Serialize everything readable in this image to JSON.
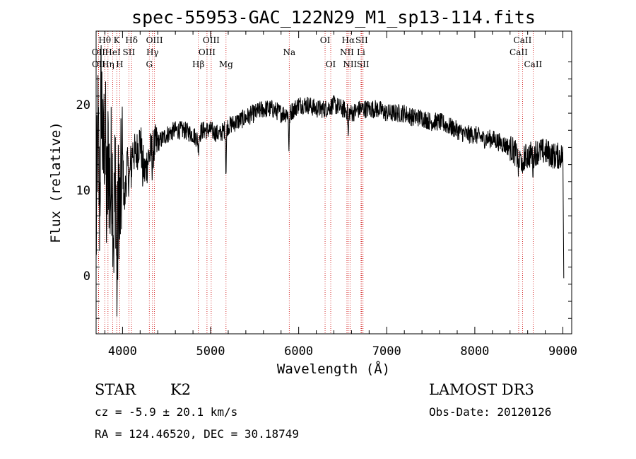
{
  "chart_data": {
    "type": "line",
    "title": "spec-55953-GAC_122N29_M1_sp13-114.fits",
    "xlabel": "Wavelength (Å)",
    "ylabel": "Flux (relative)",
    "xlim": [
      3700,
      9100
    ],
    "ylim": [
      -6.8,
      28.6
    ],
    "xticks": [
      4000,
      5000,
      6000,
      7000,
      8000,
      9000
    ],
    "yticks": [
      0,
      10,
      20
    ],
    "series": [
      {
        "name": "spectrum",
        "anchors": [
          [
            3700,
            4
          ],
          [
            3720,
            17
          ],
          [
            3740,
            8
          ],
          [
            3760,
            23
          ],
          [
            3780,
            12
          ],
          [
            3800,
            19
          ],
          [
            3820,
            7
          ],
          [
            3840,
            15
          ],
          [
            3860,
            9
          ],
          [
            3880,
            14
          ],
          [
            3900,
            5
          ],
          [
            3920,
            13
          ],
          [
            3940,
            2
          ],
          [
            3960,
            12
          ],
          [
            3980,
            9
          ],
          [
            4000,
            14
          ],
          [
            4020,
            8
          ],
          [
            4050,
            13
          ],
          [
            4080,
            11
          ],
          [
            4100,
            15
          ],
          [
            4150,
            14
          ],
          [
            4200,
            16
          ],
          [
            4250,
            12
          ],
          [
            4300,
            14
          ],
          [
            4350,
            15
          ],
          [
            4400,
            15.5
          ],
          [
            4450,
            16
          ],
          [
            4500,
            16.5
          ],
          [
            4600,
            17
          ],
          [
            4700,
            17
          ],
          [
            4800,
            16.5
          ],
          [
            4850,
            16
          ],
          [
            4900,
            17
          ],
          [
            5000,
            17
          ],
          [
            5100,
            16.5
          ],
          [
            5200,
            17.5
          ],
          [
            5300,
            18
          ],
          [
            5400,
            18.5
          ],
          [
            5500,
            19
          ],
          [
            5600,
            19.5
          ],
          [
            5700,
            19.5
          ],
          [
            5800,
            19
          ],
          [
            5900,
            19
          ],
          [
            6000,
            20
          ],
          [
            6100,
            20
          ],
          [
            6200,
            19.5
          ],
          [
            6300,
            19.5
          ],
          [
            6400,
            20
          ],
          [
            6500,
            19.5
          ],
          [
            6600,
            19
          ],
          [
            6700,
            19.5
          ],
          [
            6800,
            19.5
          ],
          [
            6900,
            19.5
          ],
          [
            7000,
            19
          ],
          [
            7100,
            19
          ],
          [
            7200,
            19
          ],
          [
            7300,
            18.5
          ],
          [
            7400,
            18.5
          ],
          [
            7500,
            18
          ],
          [
            7600,
            18
          ],
          [
            7700,
            17.5
          ],
          [
            7800,
            17
          ],
          [
            7900,
            16.5
          ],
          [
            8000,
            16.5
          ],
          [
            8100,
            16
          ],
          [
            8200,
            16
          ],
          [
            8300,
            15.5
          ],
          [
            8400,
            15
          ],
          [
            8450,
            14.5
          ],
          [
            8500,
            13.5
          ],
          [
            8600,
            14
          ],
          [
            8700,
            14.5
          ],
          [
            8800,
            14.5
          ],
          [
            8900,
            14
          ],
          [
            9000,
            14
          ],
          [
            9010,
            -0.3
          ]
        ],
        "dips": [
          [
            3934,
            6
          ],
          [
            3968,
            5
          ],
          [
            4101,
            3
          ],
          [
            4227,
            2
          ],
          [
            4340,
            2
          ],
          [
            4861,
            1.5
          ],
          [
            5175,
            5
          ],
          [
            5890,
            4
          ],
          [
            6563,
            3
          ],
          [
            8498,
            1.5
          ],
          [
            8542,
            2.5
          ],
          [
            8662,
            2
          ]
        ]
      }
    ],
    "lines": [
      {
        "wl": 3727,
        "name": "OII",
        "row": 2
      },
      {
        "wl": 3729,
        "name": "OII",
        "row": 3
      },
      {
        "wl": 3798,
        "name": "Hθ",
        "row": 1
      },
      {
        "wl": 3835,
        "name": "Hη",
        "row": 3
      },
      {
        "wl": 3889,
        "name": "HeI",
        "row": 2
      },
      {
        "wl": 3934,
        "name": "K",
        "row": 1
      },
      {
        "wl": 3968,
        "name": "H",
        "row": 3
      },
      {
        "wl": 4072,
        "name": "SII",
        "row": 2
      },
      {
        "wl": 4102,
        "name": "Hδ",
        "row": 1
      },
      {
        "wl": 4304,
        "name": "G",
        "row": 3
      },
      {
        "wl": 4340,
        "name": "Hγ",
        "row": 2
      },
      {
        "wl": 4363,
        "name": "OIII",
        "row": 1
      },
      {
        "wl": 4861,
        "name": "Hβ",
        "row": 3
      },
      {
        "wl": 4959,
        "name": "OIII",
        "row": 2
      },
      {
        "wl": 5007,
        "name": "OIII",
        "row": 1
      },
      {
        "wl": 5175,
        "name": "Mg",
        "row": 3
      },
      {
        "wl": 5893,
        "name": "Na",
        "row": 2
      },
      {
        "wl": 6300,
        "name": "OI",
        "row": 1
      },
      {
        "wl": 6364,
        "name": "OI",
        "row": 3
      },
      {
        "wl": 6548,
        "name": "NII",
        "row": 2
      },
      {
        "wl": 6563,
        "name": "Hα",
        "row": 1
      },
      {
        "wl": 6583,
        "name": "NII",
        "row": 3
      },
      {
        "wl": 6708,
        "name": "Li",
        "row": 2
      },
      {
        "wl": 6716,
        "name": "SII",
        "row": 1
      },
      {
        "wl": 6731,
        "name": "SII",
        "row": 3
      },
      {
        "wl": 8498,
        "name": "CaII",
        "row": 2
      },
      {
        "wl": 8542,
        "name": "CaII",
        "row": 1
      },
      {
        "wl": 8662,
        "name": "CaII",
        "row": 3
      }
    ],
    "colors": {
      "axes": "#000000",
      "spectrum": "#000000",
      "lines": "#cc0000",
      "background": "#ffffff"
    }
  },
  "info": {
    "class": "STAR",
    "subclass": "K2",
    "survey": "LAMOST DR3",
    "redshift": "cz = -5.9 ± 20.1 km/s",
    "obs_date": "Obs-Date: 20120126",
    "coords": "RA = 124.46520, DEC =  30.18749"
  }
}
